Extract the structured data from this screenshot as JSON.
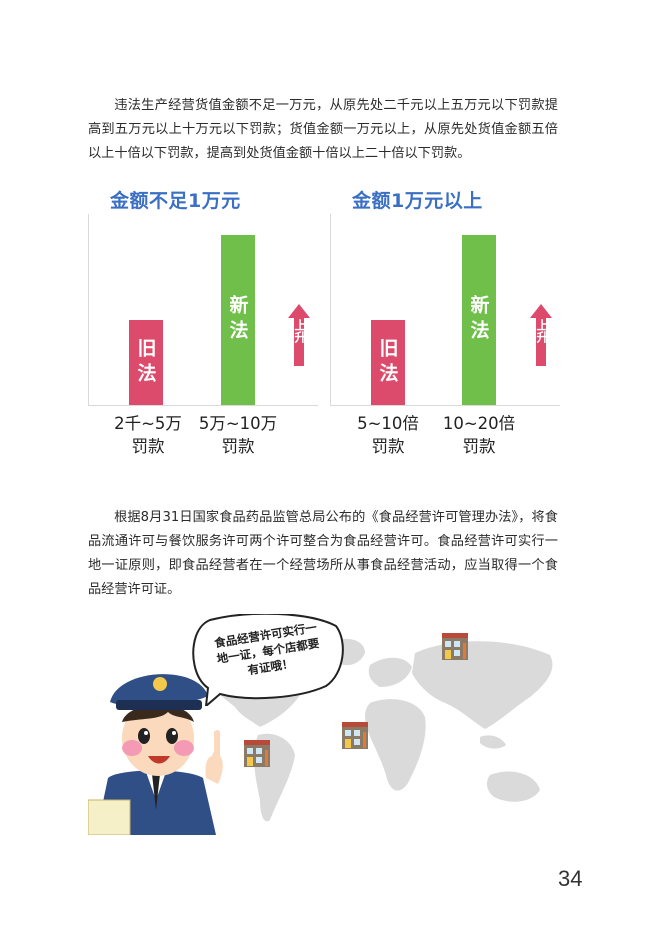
{
  "intro": {
    "paragraph1": "违法生产经营货值金额不足一万元，从原先处二千元以上五万元以下罚款提高到五万元以上十万元以下罚款；货值金额一万元以上，从原先处货值金额五倍以上十倍以下罚款，提高到处货值金额十倍以上二十倍以下罚款。",
    "paragraph2": "根据8月31日国家食品药品监管总局公布的《食品经营许可管理办法》，将食品流通许可与餐饮服务许可两个许可整合为食品经营许可。食品经营许可实行一地一证原则，即食品经营者在一个经营场所从事食品经营活动，应当取得一个食品经营许可证。"
  },
  "chart_data": [
    {
      "type": "bar",
      "title": "金额不足1万元",
      "categories": [
        "2千~5万 罚款",
        "5万~10万 罚款"
      ],
      "bar_labels": [
        "旧法",
        "新法"
      ],
      "values": [
        1,
        2
      ],
      "rise_label": "上升",
      "colors": {
        "old": "#dc4a6c",
        "new": "#6fbf4a",
        "arrow": "#dc4a6c",
        "title": "#3a6fc4"
      }
    },
    {
      "type": "bar",
      "title": "金额1万元以上",
      "categories": [
        "5~10倍 罚款",
        "10~20倍 罚款"
      ],
      "bar_labels": [
        "旧法",
        "新法"
      ],
      "values": [
        1,
        2
      ],
      "rise_label": "上升",
      "colors": {
        "old": "#dc4a6c",
        "new": "#6fbf4a",
        "arrow": "#dc4a6c",
        "title": "#3a6fc4"
      }
    }
  ],
  "chart_text": {
    "c1": {
      "title": "金额不足1万元",
      "old": "旧法",
      "new": "新法",
      "rise": "上升",
      "cat1_l1": "2千~5万",
      "cat1_l2": "罚款",
      "cat2_l1": "5万~10万",
      "cat2_l2": "罚款"
    },
    "c2": {
      "title": "金额1万元以上",
      "old": "旧法",
      "new": "新法",
      "rise": "上升",
      "cat1_l1": "5~10倍",
      "cat1_l2": "罚款",
      "cat2_l1": "10~20倍",
      "cat2_l2": "罚款"
    }
  },
  "illustration": {
    "speech_bubble": "食品经营许可实行一地一证，每个店都要有证哦！",
    "icons": [
      "officer-character-icon",
      "world-map-icon",
      "shop-icon"
    ]
  },
  "page": {
    "number": "34"
  }
}
